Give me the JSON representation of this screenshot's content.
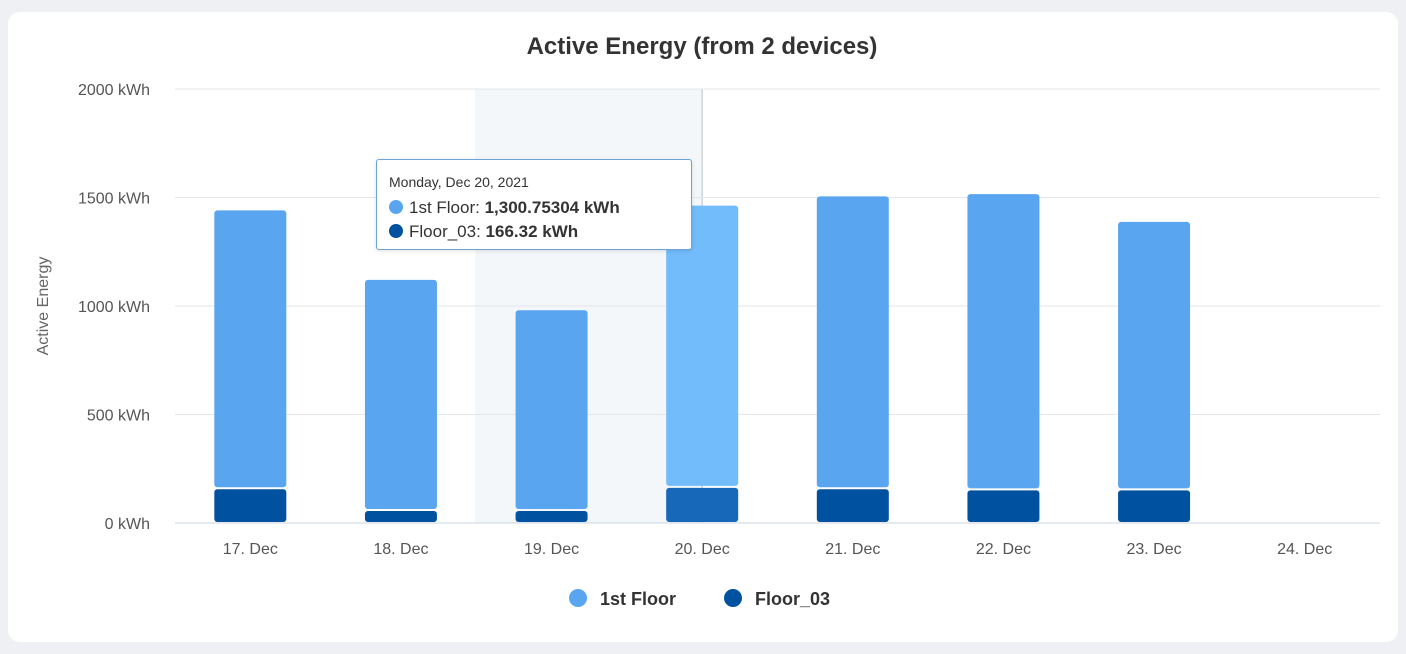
{
  "colors": {
    "first_floor": "#5aa5f0",
    "first_floor_hover": "#72bcfb",
    "floor03": "#0052a0",
    "floor03_hover": "#1768b8",
    "grid": "#e3e6ea",
    "hover_band": "#f4f7f9",
    "crosshair": "#cfd3d8"
  },
  "chart_data": {
    "type": "bar",
    "stacked": true,
    "title": "Active Energy (from 2 devices)",
    "ylabel": "Active Energy",
    "unit": "kWh",
    "ylim": [
      0,
      2000
    ],
    "yticks": [
      0,
      500,
      1000,
      1500,
      2000
    ],
    "ytick_labels": [
      "0 kWh",
      "500 kWh",
      "1000 kWh",
      "1500 kWh",
      "2000 kWh"
    ],
    "categories": [
      "17. Dec",
      "18. Dec",
      "19. Dec",
      "20. Dec",
      "21. Dec",
      "22. Dec",
      "23. Dec",
      "24. Dec"
    ],
    "series": [
      {
        "name": "Floor_03",
        "values": [
          160,
          60,
          60,
          166.32,
          160,
          155,
          155,
          null
        ]
      },
      {
        "name": "1st Floor",
        "values": [
          1285,
          1065,
          925,
          1300.75304,
          1350,
          1365,
          1237,
          null
        ]
      }
    ],
    "legend": {
      "position": "bottom-center",
      "items": [
        "1st Floor",
        "Floor_03"
      ]
    },
    "grid": true,
    "hover_index": 3
  },
  "tooltip": {
    "date": "Monday, Dec 20, 2021",
    "rows": [
      {
        "series": "1st Floor",
        "label": "1st Floor: ",
        "value": "1,300.75304 kWh"
      },
      {
        "series": "Floor_03",
        "label": "Floor_03: ",
        "value": "166.32 kWh"
      }
    ]
  }
}
